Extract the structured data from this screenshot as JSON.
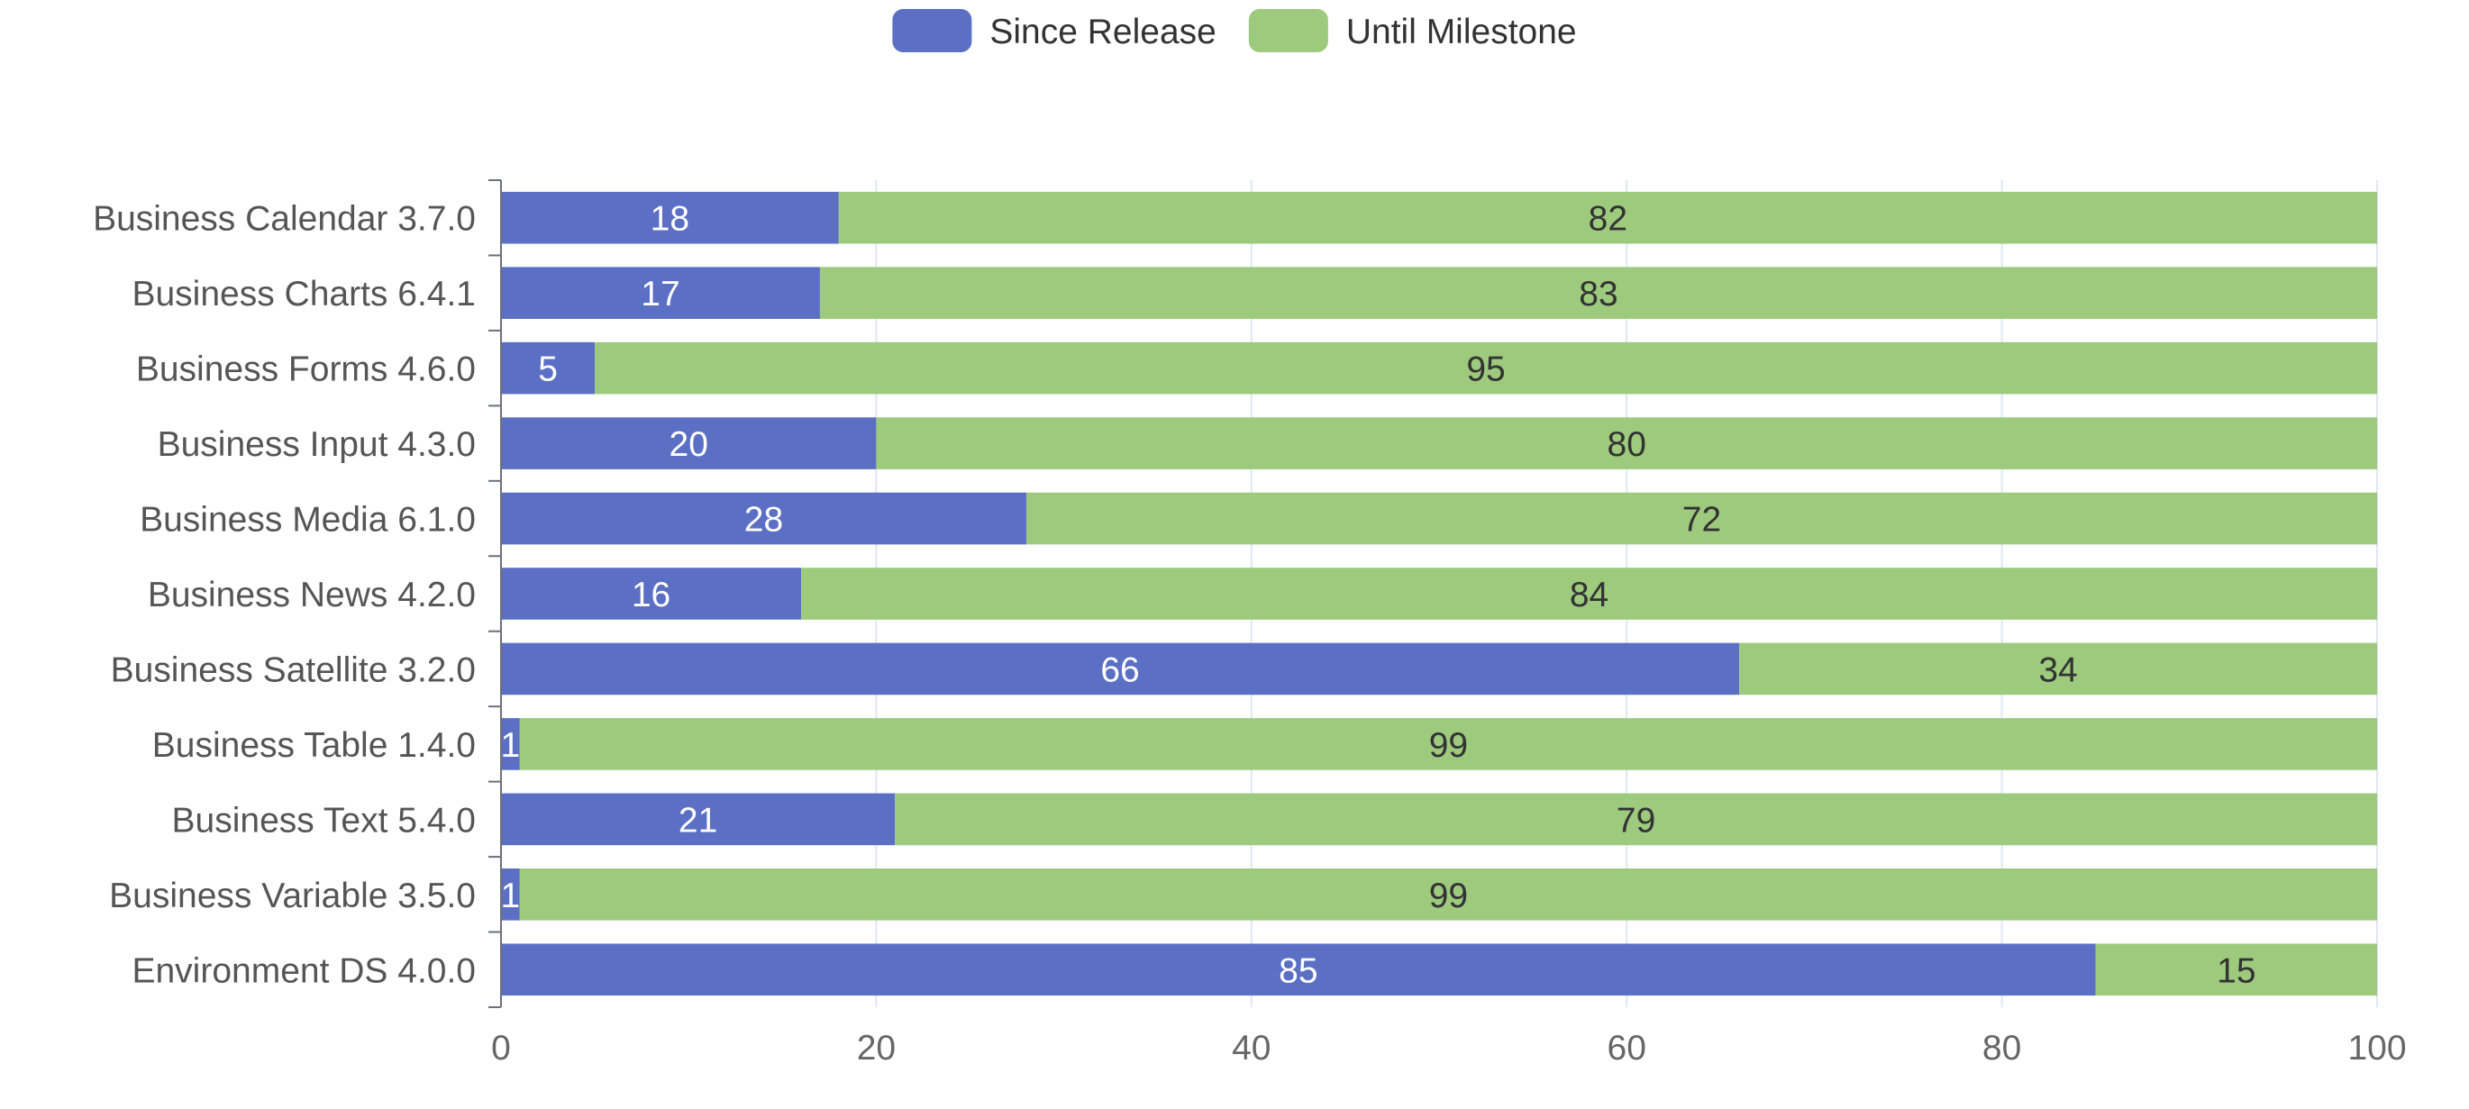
{
  "chart_data": {
    "type": "bar",
    "orientation": "horizontal",
    "stacked": true,
    "categories": [
      "Business Calendar 3.7.0",
      "Business Charts 6.4.1",
      "Business Forms 4.6.0",
      "Business Input 4.3.0",
      "Business Media 6.1.0",
      "Business News 4.2.0",
      "Business Satellite 3.2.0",
      "Business Table 1.4.0",
      "Business Text 5.4.0",
      "Business Variable 3.5.0",
      "Environment DS 4.0.0"
    ],
    "series": [
      {
        "name": "Since Release",
        "color": "#5b70c4",
        "label_color": "#ffffff",
        "values": [
          18,
          17,
          5,
          20,
          28,
          16,
          66,
          1,
          21,
          1,
          85
        ]
      },
      {
        "name": "Until Milestone",
        "color": "#9dca7d",
        "label_color": "#333333",
        "values": [
          82,
          83,
          95,
          80,
          72,
          84,
          34,
          99,
          79,
          99,
          15
        ]
      }
    ],
    "xlim": [
      0,
      100
    ],
    "x_ticks": [
      "0",
      "20",
      "40",
      "60",
      "80",
      "100"
    ],
    "title": "",
    "xlabel": "",
    "ylabel": "",
    "grid": true,
    "legend_position": "top"
  }
}
